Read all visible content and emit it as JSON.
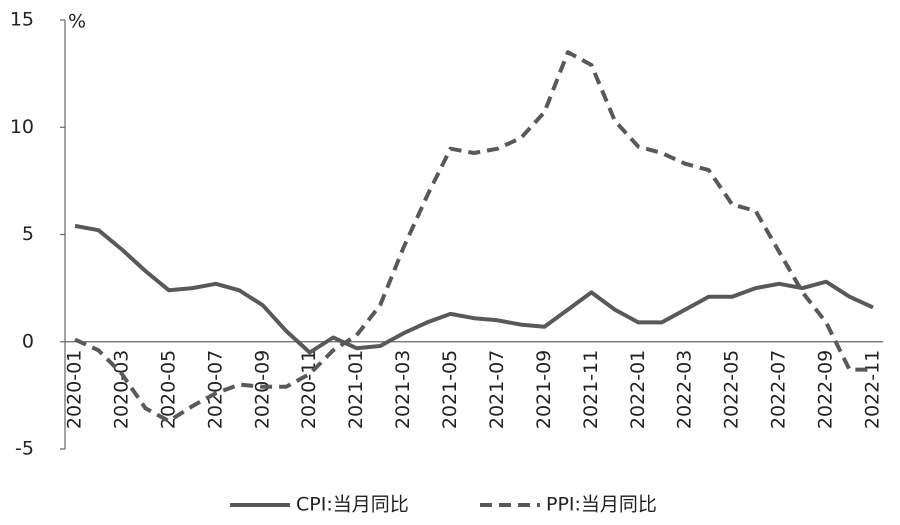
{
  "chart_data": {
    "type": "line",
    "y_label": "%",
    "categories": [
      "2020-01",
      null,
      "2020-03",
      null,
      "2020-05",
      null,
      "2020-07",
      null,
      "2020-09",
      null,
      "2020-11",
      null,
      "2021-01",
      null,
      "2021-03",
      null,
      "2021-05",
      null,
      "2021-07",
      null,
      "2021-09",
      null,
      "2021-11",
      null,
      "2022-01",
      null,
      "2022-03",
      null,
      "2022-05",
      null,
      "2022-07",
      null,
      "2022-09",
      null,
      "2022-11"
    ],
    "series": [
      {
        "name": "CPI:当月同比",
        "color": "#595959",
        "style": "solid",
        "values": [
          5.4,
          5.2,
          4.3,
          3.3,
          2.4,
          2.5,
          2.7,
          2.4,
          1.7,
          0.5,
          -0.5,
          0.2,
          -0.3,
          -0.2,
          0.4,
          0.9,
          1.3,
          1.1,
          1.0,
          0.8,
          0.7,
          1.5,
          2.3,
          1.5,
          0.9,
          0.9,
          1.5,
          2.1,
          2.1,
          2.5,
          2.7,
          2.5,
          2.8,
          2.1,
          1.6
        ]
      },
      {
        "name": "PPI:当月同比",
        "color": "#595959",
        "style": "dashed",
        "values": [
          0.1,
          -0.4,
          -1.5,
          -3.1,
          -3.7,
          -3.0,
          -2.4,
          -2.0,
          -2.1,
          -2.1,
          -1.5,
          -0.4,
          0.3,
          1.7,
          4.4,
          6.8,
          9.0,
          8.8,
          9.0,
          9.5,
          10.7,
          13.5,
          12.9,
          10.3,
          9.1,
          8.8,
          8.3,
          8.0,
          6.4,
          6.1,
          4.2,
          2.3,
          0.9,
          -1.3,
          -1.3
        ]
      }
    ],
    "ylim": [
      -5,
      15
    ],
    "yticks": [
      -5,
      0,
      5,
      10,
      15
    ],
    "grid": false,
    "legend": "bottom"
  }
}
